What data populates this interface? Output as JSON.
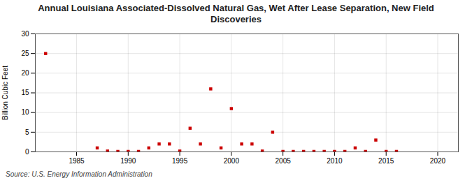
{
  "chart_data": {
    "type": "scatter",
    "title": "Annual Louisiana Associated-Dissolved Natural Gas, Wet After Lease Separation, New Field\nDiscoveries",
    "ylabel": "Billion Cubic Feet",
    "source": "Source: U.S. Energy Information Administration",
    "x": [
      1982,
      1987,
      1988,
      1989,
      1990,
      1991,
      1992,
      1993,
      1994,
      1995,
      1996,
      1997,
      1998,
      1999,
      2000,
      2001,
      2002,
      2003,
      2004,
      2005,
      2006,
      2007,
      2008,
      2009,
      2010,
      2011,
      2012,
      2013,
      2014,
      2015,
      2016
    ],
    "values": [
      25.0,
      1.0,
      0.2,
      0.1,
      0.1,
      0.1,
      1.0,
      2.0,
      2.0,
      0.2,
      6.0,
      2.0,
      16.0,
      1.0,
      11.0,
      2.0,
      2.0,
      0.2,
      5.0,
      0.1,
      0.1,
      0.1,
      0.1,
      0.1,
      0.1,
      0.1,
      1.0,
      0.1,
      3.0,
      0.1,
      0.1
    ],
    "color": "#cc0000",
    "marker": "square",
    "xlim": [
      1981,
      2022
    ],
    "xticks": [
      1985,
      1990,
      1995,
      2000,
      2005,
      2010,
      2015,
      2020
    ],
    "ylim": [
      0,
      30
    ],
    "yticks": [
      0,
      5,
      10,
      15,
      20,
      25,
      30
    ],
    "grid": true
  }
}
